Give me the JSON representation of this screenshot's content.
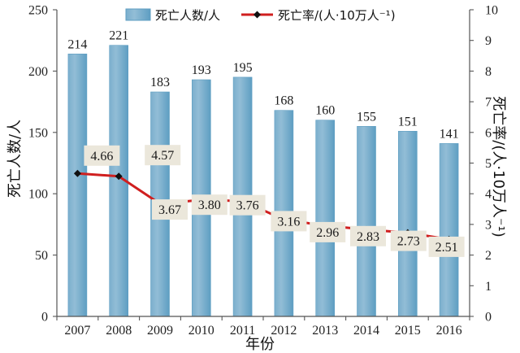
{
  "chart_data": {
    "type": "bar",
    "categories": [
      "2007",
      "2008",
      "2009",
      "2010",
      "2011",
      "2012",
      "2013",
      "2014",
      "2015",
      "2016"
    ],
    "series": [
      {
        "name": "死亡人数/人",
        "type": "bar",
        "values": [
          214,
          221,
          183,
          193,
          195,
          168,
          160,
          155,
          151,
          141
        ],
        "color": "#5e9ec2"
      },
      {
        "name": "死亡率/(人·10万人⁻¹)",
        "type": "line",
        "values": [
          4.66,
          4.57,
          3.67,
          3.8,
          3.76,
          3.16,
          2.96,
          2.83,
          2.73,
          2.51
        ],
        "color": "#d01f1f",
        "marker": "diamond",
        "marker_color": "#111111",
        "label_background": "#ebe7db"
      }
    ],
    "xlabel": "年份",
    "ylabel": "死亡人数/人",
    "y2label": "死亡率/(人·10万人⁻¹)",
    "ylim": [
      0,
      250
    ],
    "yticks": [
      0,
      50,
      100,
      150,
      200,
      250
    ],
    "y2lim": [
      0,
      10
    ],
    "y2ticks": [
      0,
      1,
      2,
      3,
      4,
      5,
      6,
      7,
      8,
      9,
      10
    ],
    "legend": "top",
    "grid": false
  }
}
